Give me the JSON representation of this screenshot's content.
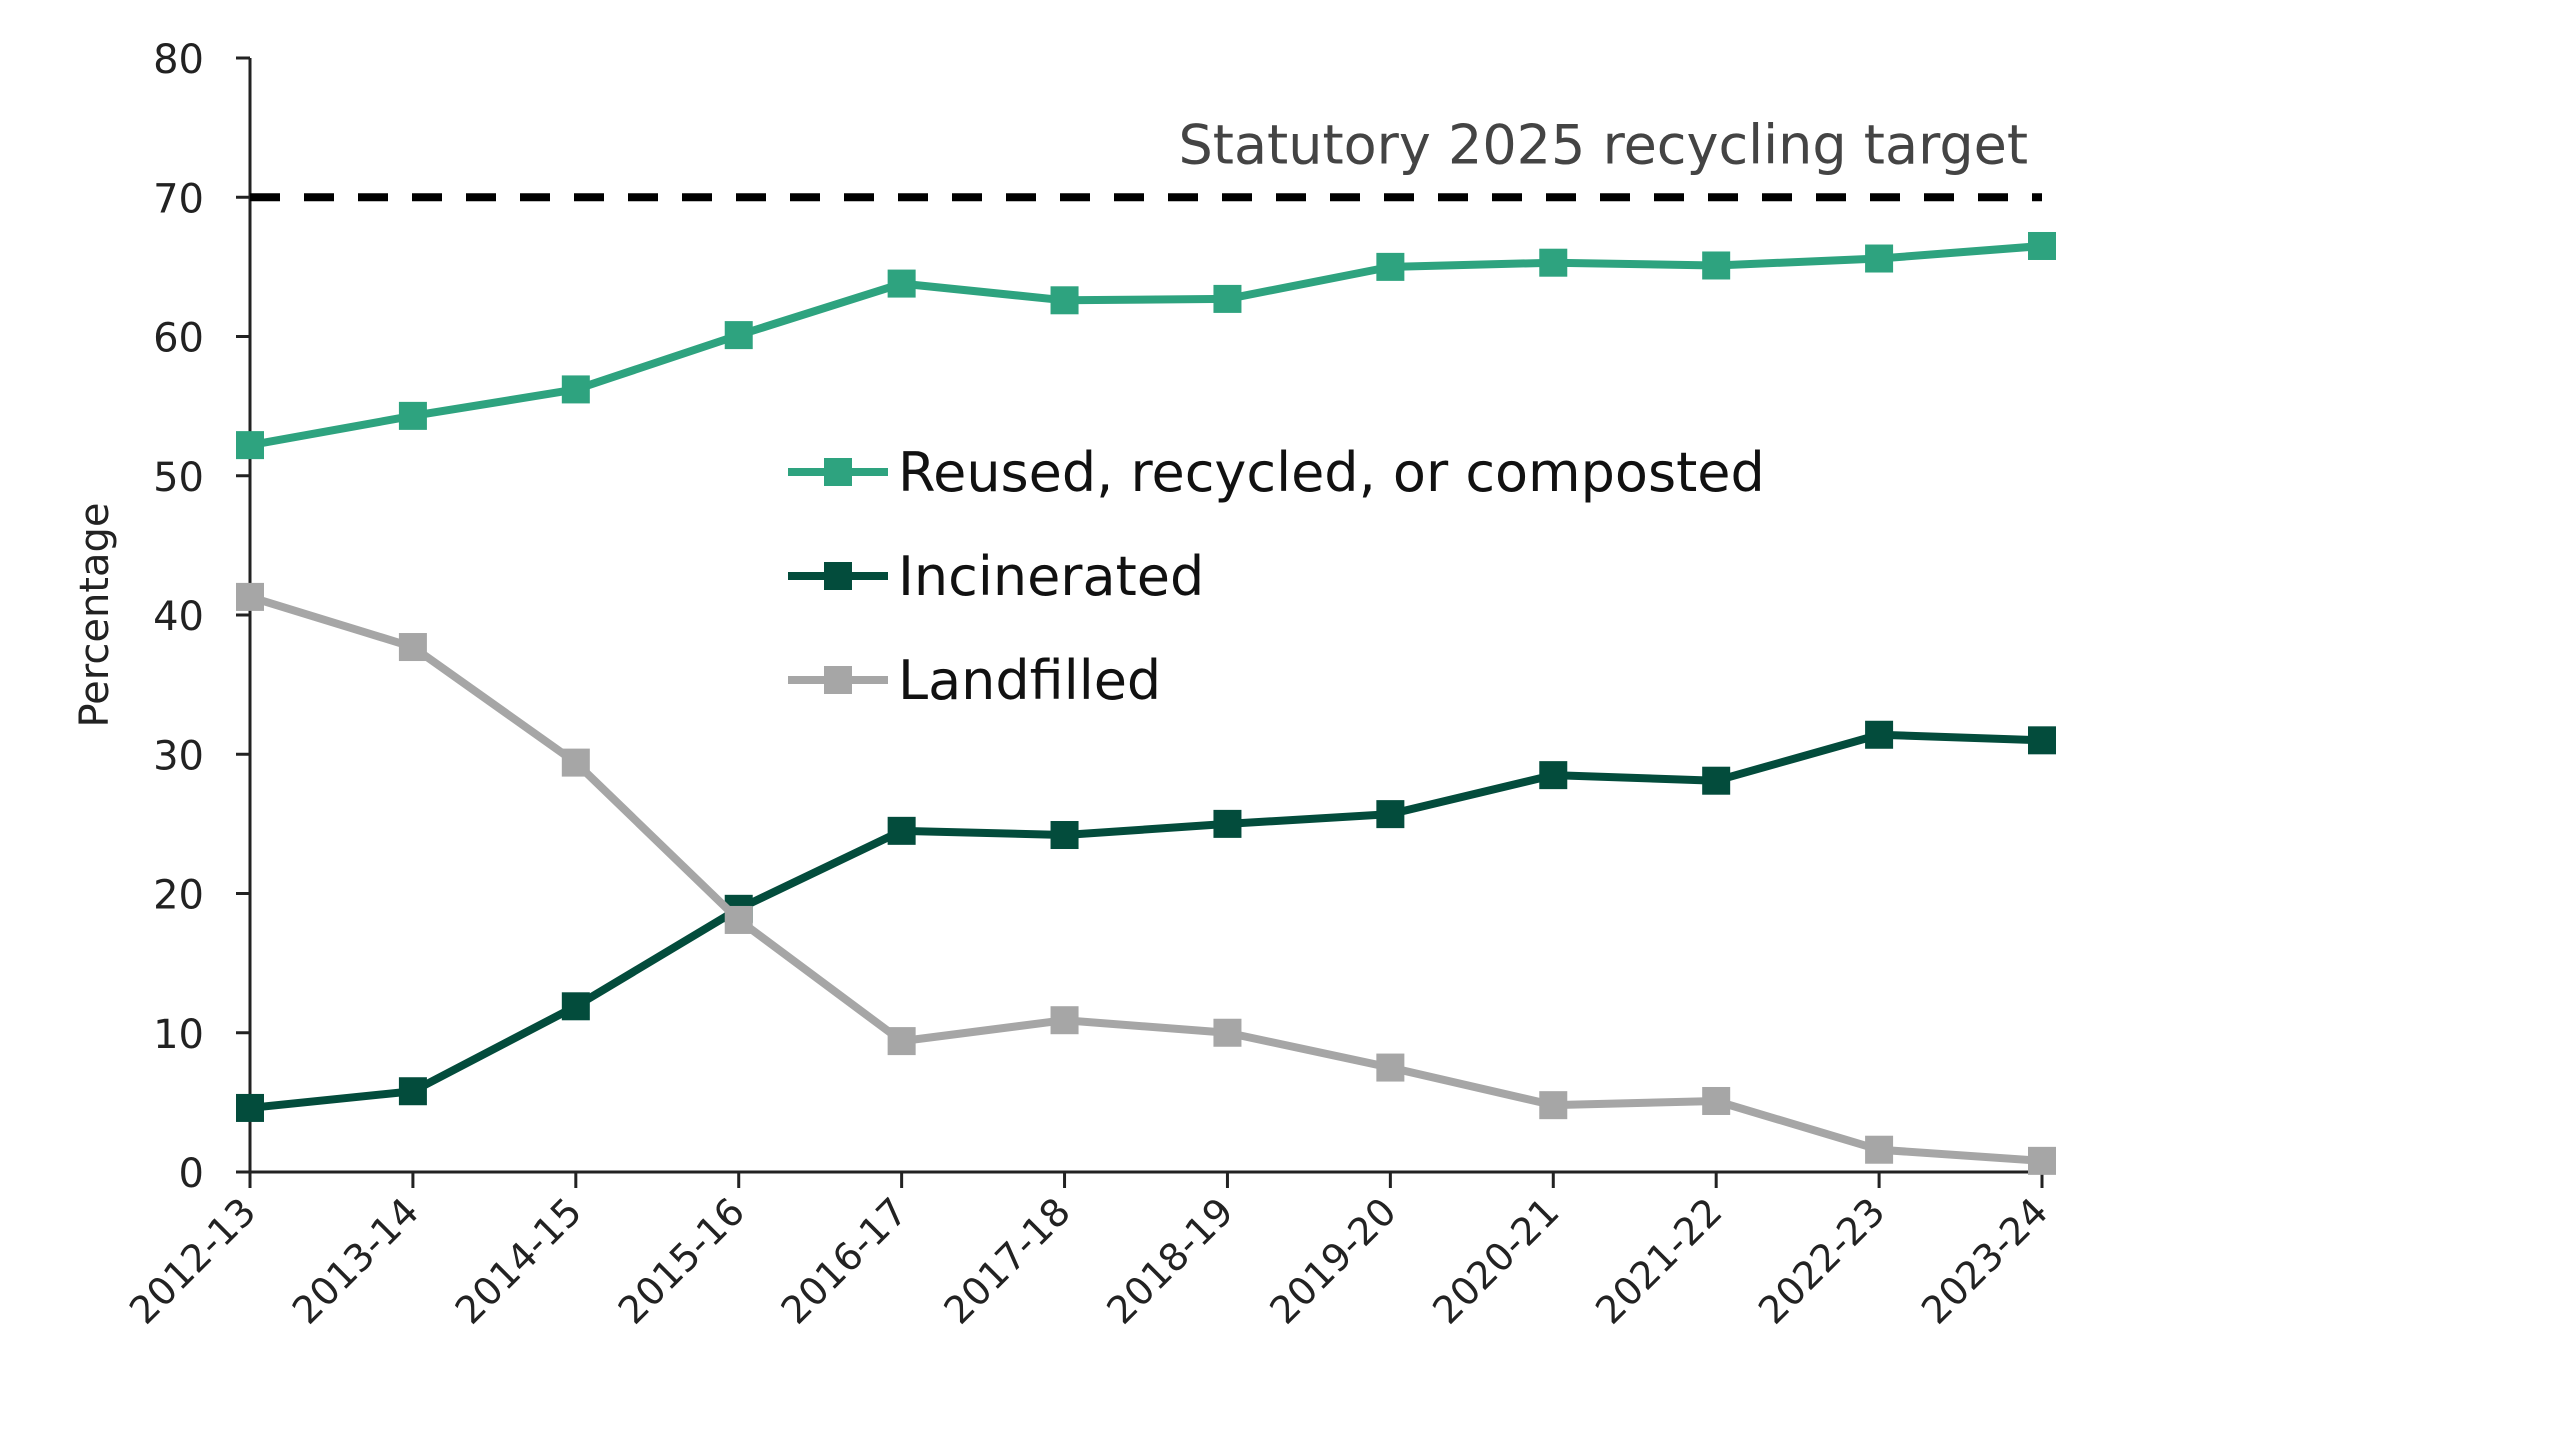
{
  "chart_data": {
    "type": "line",
    "title": "",
    "xlabel": "",
    "ylabel": "Percentage",
    "ylim": [
      0,
      80
    ],
    "yticks": [
      0,
      10,
      20,
      30,
      40,
      50,
      60,
      70,
      80
    ],
    "grid": false,
    "legend_position": "center",
    "categories": [
      "2012-13",
      "2013-14",
      "2014-15",
      "2015-16",
      "2016-17",
      "2017-18",
      "2018-19",
      "2019-20",
      "2020-21",
      "2021-22",
      "2022-23",
      "2023-24"
    ],
    "series": [
      {
        "name": "Reused, recycled, or composted",
        "color": "#2ea37f",
        "values": [
          52.2,
          54.3,
          56.2,
          60.1,
          63.8,
          62.6,
          62.7,
          65.0,
          65.3,
          65.1,
          65.6,
          66.5
        ]
      },
      {
        "name": "Incinerated",
        "color": "#034c3c",
        "values": [
          4.6,
          5.8,
          11.9,
          18.9,
          24.5,
          24.2,
          25.0,
          25.7,
          28.5,
          28.1,
          31.4,
          31.0
        ]
      },
      {
        "name": "Landfilled",
        "color": "#a6a6a6",
        "values": [
          41.3,
          37.7,
          29.4,
          18.1,
          9.4,
          10.9,
          10.0,
          7.5,
          4.8,
          5.1,
          1.6,
          0.8
        ]
      }
    ],
    "annotations": [
      {
        "type": "reference-line",
        "value": 70,
        "label": "Statutory 2025 recycling target",
        "color": "#000000",
        "style": "dashed"
      }
    ]
  }
}
